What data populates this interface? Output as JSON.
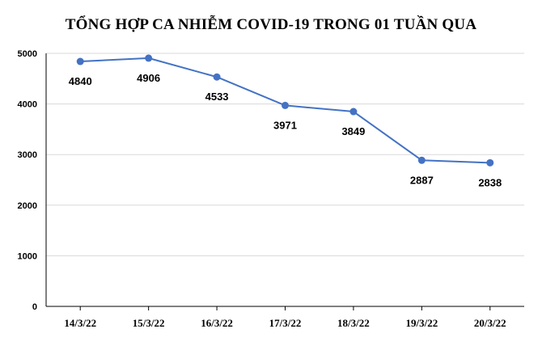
{
  "chart_data": {
    "type": "line",
    "title": "TỔNG HỢP CA NHIỄM COVID-19 TRONG 01 TUẦN QUA",
    "xlabel": "",
    "ylabel": "",
    "categories": [
      "14/3/22",
      "15/3/22",
      "16/3/22",
      "17/3/22",
      "18/3/22",
      "19/3/22",
      "20/3/22"
    ],
    "series": [
      {
        "values": [
          4840,
          4906,
          4533,
          3971,
          3849,
          2887,
          2838
        ],
        "color": "#4472C4"
      }
    ],
    "ylim": [
      0,
      5000
    ],
    "yticks": [
      0,
      1000,
      2000,
      3000,
      4000,
      5000
    ],
    "grid": true,
    "legend": "none",
    "data_labels": "below"
  }
}
